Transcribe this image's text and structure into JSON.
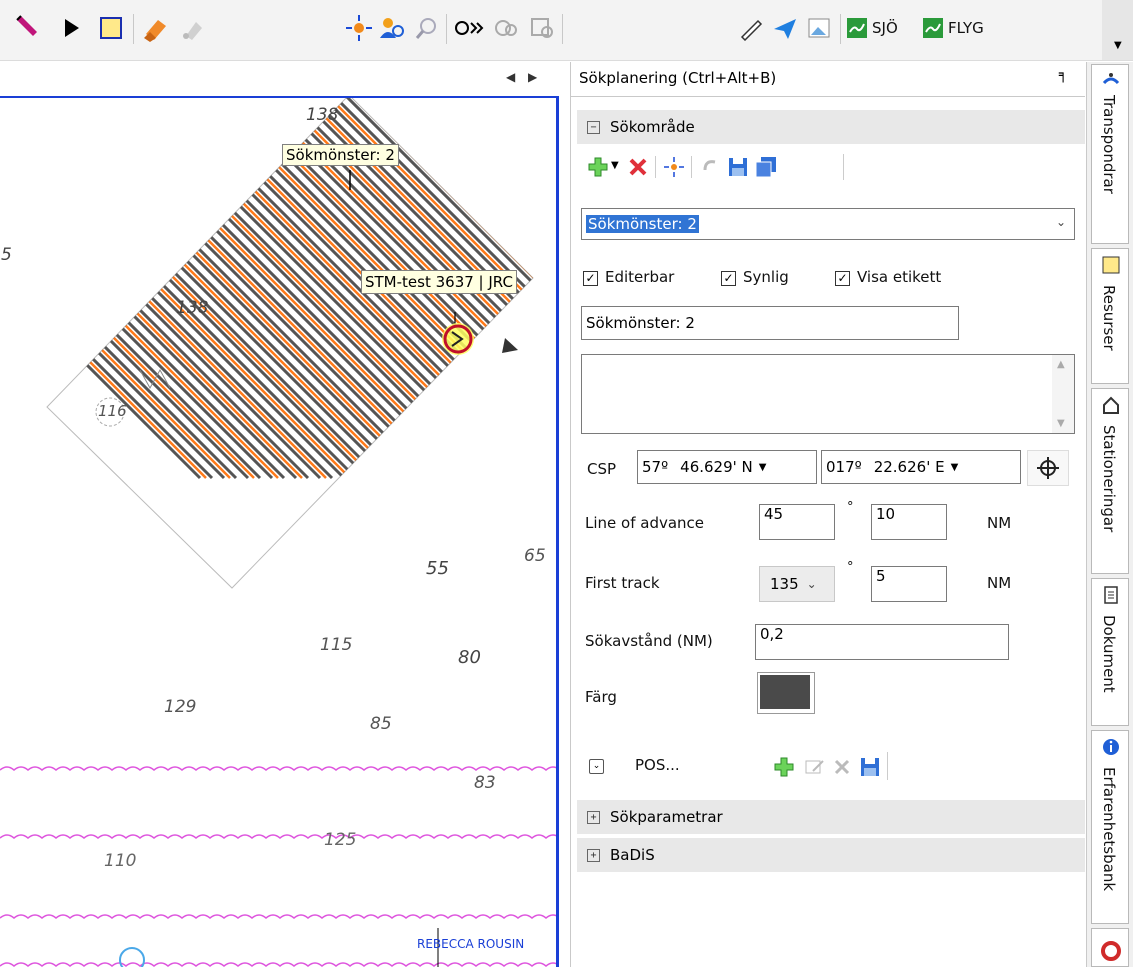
{
  "toolbar": {
    "sjo_label": "SJÖ",
    "flyg_label": "FLYG"
  },
  "map": {
    "tab_nav_left": "◀",
    "tab_nav_right": "▶",
    "pattern_tooltip": "Sökmönster: 2",
    "vessel_tooltip": "STM-test 3637 | JRC",
    "depths": [
      "138",
      "5",
      "138",
      "116",
      "55",
      "65",
      "115",
      "80",
      "129",
      "85",
      "83",
      "125",
      "110"
    ],
    "ship_label": "REBECCA ROUSIN"
  },
  "panel": {
    "title": "Sökplanering (Ctrl+Alt+B)",
    "pin": "⊓",
    "section_area": "Sökområde",
    "pattern_select": "Sökmönster: 2",
    "cb_editable": "Editerbar",
    "cb_visible": "Synlig",
    "cb_label": "Visa etikett",
    "name_value": "Sökmönster: 2",
    "description_value": "",
    "csp_label": "CSP",
    "csp_lat_deg": "57º",
    "csp_lat_min": "46.629' N",
    "csp_lon_deg": "017º",
    "csp_lon_min": "22.626' E",
    "loa_label": "Line of advance",
    "loa_deg": "45",
    "loa_dist": "10",
    "nm": "NM",
    "first_track_label": "First track",
    "first_track_deg": "135",
    "first_track_dist": "5",
    "spacing_label": "Sökavstånd (NM)",
    "spacing_value": "0,2",
    "color_label": "Färg",
    "color_value": "#4a4a4a",
    "pos_label": "POS...",
    "section_params": "Sökparametrar",
    "section_badis": "BaDiS"
  },
  "sidetabs": [
    "Transpondrar",
    "Resurser",
    "Stationeringar",
    "Dokument",
    "Erfarenhetsbank"
  ],
  "colors": {
    "map_border": "#1a3fd6",
    "track_orange": "#ff7a1a",
    "track_grey": "#555555",
    "tooltip_bg": "#ffffe1"
  }
}
